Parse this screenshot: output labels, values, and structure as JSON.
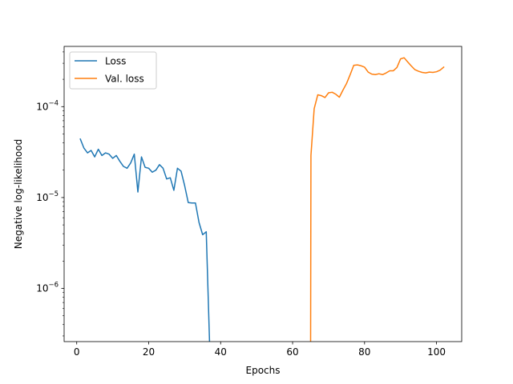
{
  "chart_data": {
    "type": "line",
    "xlabel": "Epochs",
    "ylabel": "Negative log-likelihood",
    "yscale": "log",
    "xlim": [
      -3.5,
      107
    ],
    "ylim": [
      2.6e-07,
      0.00046
    ],
    "grid": false,
    "legend_position": "upper-left",
    "x_ticks": [
      0,
      20,
      40,
      60,
      80,
      100
    ],
    "x_tick_labels": [
      "0",
      "20",
      "40",
      "60",
      "80",
      "100"
    ],
    "y_ticks": [
      1e-06,
      1e-05,
      0.0001
    ],
    "y_tick_labels": [
      {
        "base": "10",
        "exp": "−6"
      },
      {
        "base": "10",
        "exp": "−5"
      },
      {
        "base": "10",
        "exp": "−4"
      }
    ],
    "series": [
      {
        "name": "Loss",
        "color": "#1f77b4",
        "x": [
          1,
          2,
          3,
          4,
          5,
          6,
          7,
          8,
          9,
          10,
          11,
          12,
          13,
          14,
          15,
          16,
          17,
          18,
          19,
          20,
          21,
          22,
          23,
          24,
          25,
          26,
          27,
          28,
          29,
          30,
          31,
          32,
          33,
          34,
          35,
          36,
          37,
          38,
          39
        ],
        "y": [
          4.4e-05,
          3.5e-05,
          3.1e-05,
          3.3e-05,
          2.8e-05,
          3.4e-05,
          2.9e-05,
          3.1e-05,
          3e-05,
          2.7e-05,
          2.9e-05,
          2.5e-05,
          2.2e-05,
          2.1e-05,
          2.4e-05,
          3e-05,
          1.15e-05,
          2.8e-05,
          2.15e-05,
          2.1e-05,
          1.9e-05,
          2e-05,
          2.3e-05,
          2.1e-05,
          1.6e-05,
          1.65e-05,
          1.2e-05,
          2.1e-05,
          1.95e-05,
          1.35e-05,
          8.8e-06,
          8.7e-06,
          8.7e-06,
          5.3e-06,
          3.9e-06,
          4.2e-06,
          2e-07,
          null,
          4.4e-07
        ]
      },
      {
        "name": "Val. loss",
        "color": "#ff7f0e",
        "x": [
          65,
          65.1,
          66,
          67,
          68,
          69,
          70,
          71,
          72,
          73,
          74,
          75,
          76,
          77,
          78,
          79,
          80,
          81,
          82,
          83,
          84,
          85,
          86,
          87,
          88,
          89,
          90,
          91,
          92,
          93,
          94,
          95,
          96,
          97,
          98,
          99,
          100,
          101,
          102
        ],
        "y": [
          2e-07,
          2.9e-05,
          9.5e-05,
          0.000135,
          0.000132,
          0.000126,
          0.000142,
          0.000144,
          0.000137,
          0.000127,
          0.000152,
          0.00018,
          0.000225,
          0.000285,
          0.000288,
          0.000282,
          0.000272,
          0.00024,
          0.000228,
          0.000225,
          0.00023,
          0.000225,
          0.000235,
          0.000248,
          0.000248,
          0.00027,
          0.000335,
          0.000345,
          0.00031,
          0.00028,
          0.000255,
          0.000245,
          0.000238,
          0.000235,
          0.00024,
          0.000238,
          0.000242,
          0.000252,
          0.000272
        ]
      }
    ]
  }
}
